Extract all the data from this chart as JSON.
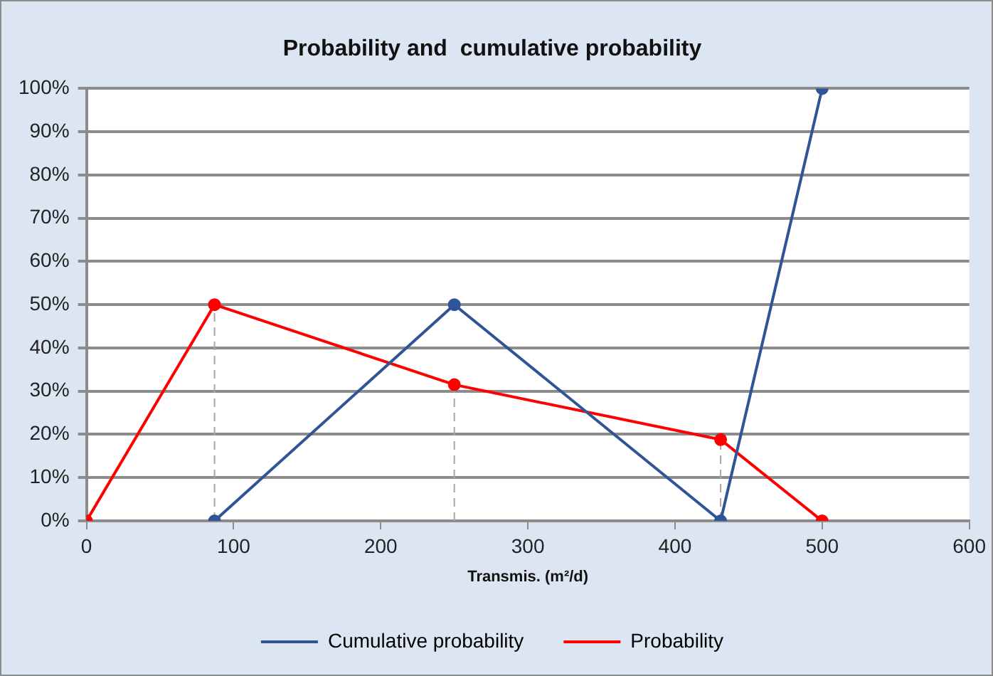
{
  "chart_data": {
    "type": "line",
    "title": "Probability and  cumulative probability",
    "xlabel": "Transmis. (m²/d)",
    "series": [
      {
        "name": "Cumulative probability",
        "color": "#2f5597",
        "x": [
          87,
          250,
          431,
          500
        ],
        "values": [
          0,
          50,
          0,
          100
        ]
      },
      {
        "name": "Probability",
        "color": "#ff0000",
        "x": [
          0,
          87,
          250,
          431,
          500
        ],
        "values": [
          0,
          50,
          31.5,
          18.8,
          0
        ]
      }
    ],
    "xlim": [
      0,
      600
    ],
    "xticks": [
      0,
      100,
      200,
      300,
      400,
      500,
      600
    ],
    "ylim": [
      0,
      100
    ],
    "yticks": [
      {
        "value": 0,
        "label": "0%"
      },
      {
        "value": 10,
        "label": "10%"
      },
      {
        "value": 20,
        "label": "20%"
      },
      {
        "value": 30,
        "label": "30%"
      },
      {
        "value": 40,
        "label": "40%"
      },
      {
        "value": 50,
        "label": "50%"
      },
      {
        "value": 60,
        "label": "60%"
      },
      {
        "value": 70,
        "label": "70%"
      },
      {
        "value": 80,
        "label": "80%"
      },
      {
        "value": 90,
        "label": "90%"
      },
      {
        "value": 100,
        "label": "100%"
      }
    ],
    "ref_lines": [
      {
        "axis": "x",
        "value": 87,
        "color": "#a6a6a6",
        "line_style": "dashed"
      },
      {
        "axis": "x",
        "value": 250,
        "color": "#a6a6a6",
        "line_style": "dashed"
      },
      {
        "axis": "x",
        "value": 431,
        "color": "#a6a6a6",
        "line_style": "dashed"
      }
    ],
    "grid": "y",
    "legend": "bottom",
    "marker": "circle",
    "line_style": "solid"
  }
}
